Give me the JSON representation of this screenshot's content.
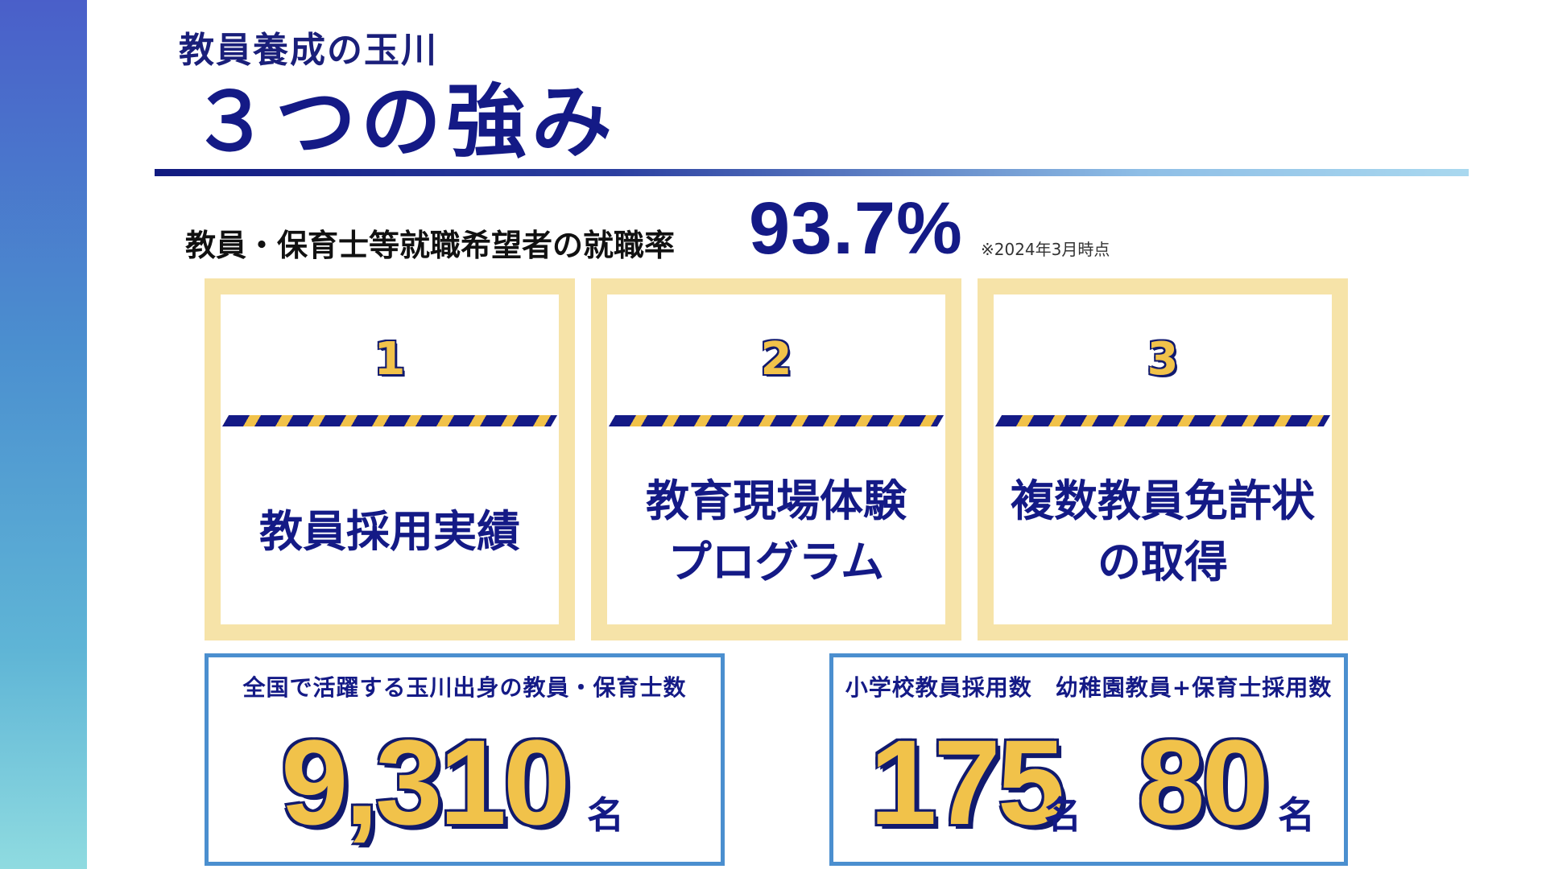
{
  "header": {
    "subtitle": "教員養成の玉川",
    "title": "３つの強み"
  },
  "employment": {
    "label": "教員・保育士等就職希望者の就職率",
    "rate": "93.7%",
    "note": "※2024年3月時点"
  },
  "strengths": [
    {
      "number": "1",
      "text": "教員採用実績"
    },
    {
      "number": "2",
      "text": "教育現場体験\nプログラム"
    },
    {
      "number": "3",
      "text": "複数教員免許状\nの取得"
    }
  ],
  "stats": {
    "alumni": {
      "label": "全国で活躍する玉川出身の教員・保育士数",
      "value": "9,310",
      "unit": "名"
    },
    "hiring": {
      "label": "小学校教員採用数　幼稚園教員+保育士採用数",
      "elementary_value": "175",
      "elementary_unit": "名",
      "kindergarten_value": "80",
      "kindergarten_unit": "名"
    }
  },
  "colors": {
    "navy": "#141a86",
    "gold": "#f1c24a",
    "card_border": "#f6e3a8",
    "box_border": "#4b8fcf"
  }
}
